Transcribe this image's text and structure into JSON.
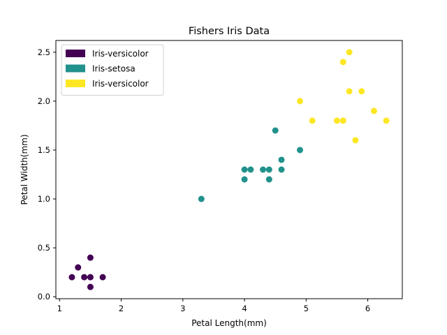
{
  "chart_data": {
    "type": "scatter",
    "title": "Fishers Iris Data",
    "xlabel": "Petal Length(mm)",
    "ylabel": "Petal Width(mm)",
    "xlim": [
      0.94,
      6.56
    ],
    "ylim": [
      -0.02,
      2.62
    ],
    "xticks": [
      1,
      2,
      3,
      4,
      5,
      6
    ],
    "xtick_labels": [
      "1",
      "2",
      "3",
      "4",
      "5",
      "6"
    ],
    "yticks": [
      0.0,
      0.5,
      1.0,
      1.5,
      2.0,
      2.5
    ],
    "ytick_labels": [
      "0.0",
      "0.5",
      "1.0",
      "1.5",
      "2.0",
      "2.5"
    ],
    "grid": false,
    "legend_position": "top-left",
    "series": [
      {
        "name": "Iris-versicolor",
        "color": "#440154",
        "points": [
          [
            1.2,
            0.2
          ],
          [
            1.3,
            0.3
          ],
          [
            1.4,
            0.2
          ],
          [
            1.5,
            0.4
          ],
          [
            1.5,
            0.2
          ],
          [
            1.5,
            0.1
          ],
          [
            1.7,
            0.2
          ]
        ]
      },
      {
        "name": "Iris-setosa",
        "color": "#21918c",
        "points": [
          [
            3.3,
            1.0
          ],
          [
            4.0,
            1.3
          ],
          [
            4.0,
            1.2
          ],
          [
            4.1,
            1.3
          ],
          [
            4.3,
            1.3
          ],
          [
            4.4,
            1.3
          ],
          [
            4.4,
            1.2
          ],
          [
            4.5,
            1.7
          ],
          [
            4.6,
            1.4
          ],
          [
            4.6,
            1.3
          ],
          [
            4.9,
            1.5
          ]
        ]
      },
      {
        "name": "Iris-versicolor",
        "color": "#fde725",
        "points": [
          [
            4.9,
            2.0
          ],
          [
            5.1,
            1.8
          ],
          [
            5.5,
            1.8
          ],
          [
            5.6,
            2.4
          ],
          [
            5.6,
            1.8
          ],
          [
            5.7,
            2.5
          ],
          [
            5.7,
            2.1
          ],
          [
            5.8,
            1.6
          ],
          [
            5.9,
            2.1
          ],
          [
            6.1,
            1.9
          ],
          [
            6.3,
            1.8
          ]
        ]
      }
    ]
  }
}
